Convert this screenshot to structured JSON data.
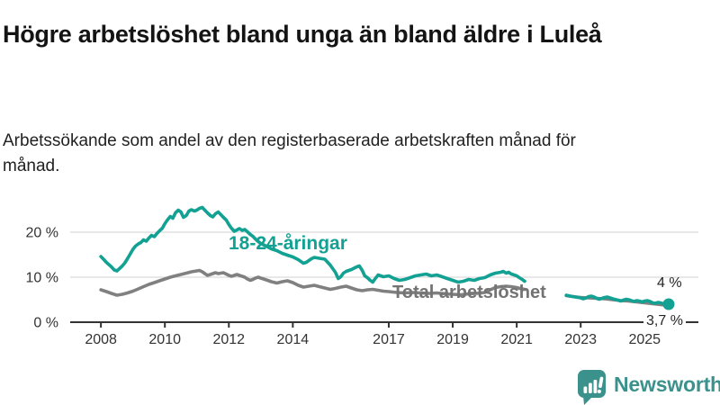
{
  "header": {
    "title": "Högre arbetslöshet bland unga än bland äldre i Luleå",
    "subtitle": "Arbetssökande som andel av den registerbaserade arbetskraften månad för månad."
  },
  "colors": {
    "accent_teal": "#12a192",
    "line_gray": "#808080",
    "label_gray": "#737373",
    "axis": "#333333",
    "gridline": "#d9d9d9",
    "logo_teal": "#3b918c",
    "end_label_text": "#262626"
  },
  "footer": {
    "brand": "Newsworthy",
    "logo_icon": "speech-bubble-bar-chart-exclamation"
  },
  "chart_data": {
    "type": "line",
    "title": "Högre arbetslöshet bland unga än bland äldre i Luleå",
    "subtitle": "Arbetssökande som andel av den registerbaserade arbetskraften månad för månad.",
    "xlabel": "",
    "ylabel": "",
    "xlim": [
      2007.04,
      2026.68
    ],
    "ylim": [
      0,
      32
    ],
    "grid": "horizontal",
    "legend_position": "inline-labels",
    "x_tick_years": [
      2008,
      2010,
      2012,
      2014,
      2017,
      2019,
      2021,
      2023,
      2025
    ],
    "x_tick_labels": [
      "2008",
      "2010",
      "2012",
      "2014",
      "2017",
      "2019",
      "2021",
      "2023",
      "2025"
    ],
    "y_tick_values": [
      0,
      10,
      20
    ],
    "y_tick_labels": [
      "0 %",
      "10 %",
      "20 %"
    ],
    "note": "data gap between 2021.25 and 2022.55 in both series",
    "series": [
      {
        "name": "18-24-åringar",
        "color": "#12a192",
        "end_label": "4 %",
        "end_value": 4.0,
        "end_dot": true,
        "points": [
          [
            2008.0,
            14.6
          ],
          [
            2008.08,
            14.0
          ],
          [
            2008.17,
            13.3
          ],
          [
            2008.25,
            12.8
          ],
          [
            2008.33,
            12.3
          ],
          [
            2008.42,
            11.6
          ],
          [
            2008.5,
            11.4
          ],
          [
            2008.58,
            11.9
          ],
          [
            2008.67,
            12.5
          ],
          [
            2008.75,
            13.2
          ],
          [
            2008.83,
            14.1
          ],
          [
            2008.92,
            15.2
          ],
          [
            2009.0,
            16.2
          ],
          [
            2009.08,
            16.9
          ],
          [
            2009.17,
            17.4
          ],
          [
            2009.25,
            17.7
          ],
          [
            2009.33,
            18.3
          ],
          [
            2009.42,
            18.0
          ],
          [
            2009.5,
            18.7
          ],
          [
            2009.58,
            19.3
          ],
          [
            2009.67,
            19.0
          ],
          [
            2009.75,
            19.7
          ],
          [
            2009.83,
            20.3
          ],
          [
            2009.92,
            20.9
          ],
          [
            2010.0,
            21.9
          ],
          [
            2010.08,
            22.7
          ],
          [
            2010.17,
            23.5
          ],
          [
            2010.25,
            23.1
          ],
          [
            2010.33,
            24.3
          ],
          [
            2010.42,
            24.9
          ],
          [
            2010.5,
            24.5
          ],
          [
            2010.58,
            23.3
          ],
          [
            2010.67,
            23.7
          ],
          [
            2010.75,
            24.7
          ],
          [
            2010.83,
            25.0
          ],
          [
            2010.92,
            24.7
          ],
          [
            2011.0,
            24.9
          ],
          [
            2011.08,
            25.3
          ],
          [
            2011.17,
            25.5
          ],
          [
            2011.25,
            24.9
          ],
          [
            2011.33,
            24.3
          ],
          [
            2011.42,
            23.7
          ],
          [
            2011.5,
            23.4
          ],
          [
            2011.58,
            24.1
          ],
          [
            2011.67,
            24.5
          ],
          [
            2011.75,
            23.9
          ],
          [
            2011.83,
            23.3
          ],
          [
            2011.92,
            22.7
          ],
          [
            2012.0,
            21.7
          ],
          [
            2012.08,
            20.9
          ],
          [
            2012.17,
            20.2
          ],
          [
            2012.25,
            20.5
          ],
          [
            2012.33,
            20.8
          ],
          [
            2012.42,
            20.4
          ],
          [
            2012.5,
            20.6
          ],
          [
            2012.58,
            20.1
          ],
          [
            2012.67,
            19.5
          ],
          [
            2012.75,
            19.1
          ],
          [
            2012.83,
            18.5
          ],
          [
            2012.92,
            17.9
          ],
          [
            2013.0,
            17.5
          ],
          [
            2013.17,
            16.9
          ],
          [
            2013.33,
            16.3
          ],
          [
            2013.5,
            15.9
          ],
          [
            2013.67,
            15.3
          ],
          [
            2013.83,
            14.9
          ],
          [
            2014.0,
            14.5
          ],
          [
            2014.17,
            13.9
          ],
          [
            2014.33,
            13.1
          ],
          [
            2014.42,
            13.3
          ],
          [
            2014.58,
            14.1
          ],
          [
            2014.67,
            14.4
          ],
          [
            2014.83,
            14.2
          ],
          [
            2015.0,
            14.0
          ],
          [
            2015.17,
            12.7
          ],
          [
            2015.33,
            11.1
          ],
          [
            2015.42,
            9.7
          ],
          [
            2015.5,
            10.1
          ],
          [
            2015.58,
            10.9
          ],
          [
            2015.67,
            11.3
          ],
          [
            2015.83,
            11.7
          ],
          [
            2016.0,
            12.3
          ],
          [
            2016.08,
            12.5
          ],
          [
            2016.17,
            11.5
          ],
          [
            2016.25,
            10.3
          ],
          [
            2016.33,
            9.9
          ],
          [
            2016.42,
            9.3
          ],
          [
            2016.5,
            8.9
          ],
          [
            2016.58,
            9.7
          ],
          [
            2016.67,
            10.5
          ],
          [
            2016.75,
            10.3
          ],
          [
            2016.83,
            10.1
          ],
          [
            2017.0,
            10.3
          ],
          [
            2017.17,
            9.7
          ],
          [
            2017.33,
            9.3
          ],
          [
            2017.5,
            9.5
          ],
          [
            2017.67,
            9.9
          ],
          [
            2017.83,
            10.3
          ],
          [
            2018.0,
            10.5
          ],
          [
            2018.17,
            10.7
          ],
          [
            2018.33,
            10.3
          ],
          [
            2018.5,
            10.5
          ],
          [
            2018.67,
            10.1
          ],
          [
            2018.83,
            9.7
          ],
          [
            2019.0,
            9.3
          ],
          [
            2019.17,
            8.9
          ],
          [
            2019.33,
            9.1
          ],
          [
            2019.5,
            9.5
          ],
          [
            2019.67,
            9.3
          ],
          [
            2019.83,
            9.7
          ],
          [
            2020.0,
            9.9
          ],
          [
            2020.17,
            10.5
          ],
          [
            2020.33,
            10.9
          ],
          [
            2020.5,
            11.1
          ],
          [
            2020.58,
            11.3
          ],
          [
            2020.67,
            10.9
          ],
          [
            2020.75,
            11.1
          ],
          [
            2020.83,
            10.7
          ],
          [
            2020.92,
            10.5
          ],
          [
            2021.0,
            10.3
          ],
          [
            2021.08,
            9.9
          ],
          [
            2021.17,
            9.5
          ],
          [
            2021.25,
            9.1
          ],
          [
            2022.55,
            6.0
          ],
          [
            2022.67,
            5.8
          ],
          [
            2022.83,
            5.6
          ],
          [
            2023.0,
            5.4
          ],
          [
            2023.08,
            5.2
          ],
          [
            2023.17,
            5.4
          ],
          [
            2023.25,
            5.7
          ],
          [
            2023.33,
            5.8
          ],
          [
            2023.42,
            5.6
          ],
          [
            2023.5,
            5.3
          ],
          [
            2023.58,
            5.1
          ],
          [
            2023.67,
            5.3
          ],
          [
            2023.75,
            5.5
          ],
          [
            2023.83,
            5.6
          ],
          [
            2023.92,
            5.4
          ],
          [
            2024.0,
            5.2
          ],
          [
            2024.17,
            4.9
          ],
          [
            2024.25,
            4.7
          ],
          [
            2024.33,
            4.9
          ],
          [
            2024.42,
            5.1
          ],
          [
            2024.5,
            5.0
          ],
          [
            2024.58,
            4.8
          ],
          [
            2024.67,
            4.6
          ],
          [
            2024.75,
            4.8
          ],
          [
            2024.83,
            4.7
          ],
          [
            2024.92,
            4.5
          ],
          [
            2025.0,
            4.7
          ],
          [
            2025.08,
            4.8
          ],
          [
            2025.17,
            4.6
          ],
          [
            2025.25,
            4.3
          ],
          [
            2025.33,
            4.2
          ],
          [
            2025.42,
            4.4
          ],
          [
            2025.5,
            4.3
          ],
          [
            2025.58,
            4.1
          ],
          [
            2025.67,
            4.0
          ],
          [
            2025.75,
            4.0
          ]
        ]
      },
      {
        "name": "Total arbetslöshet",
        "color": "#808080",
        "end_label": "3,7 %",
        "end_value": 3.7,
        "end_dot": false,
        "points": [
          [
            2008.0,
            7.2
          ],
          [
            2008.17,
            6.8
          ],
          [
            2008.33,
            6.4
          ],
          [
            2008.5,
            6.0
          ],
          [
            2008.67,
            6.2
          ],
          [
            2008.83,
            6.5
          ],
          [
            2009.0,
            6.9
          ],
          [
            2009.17,
            7.4
          ],
          [
            2009.33,
            7.9
          ],
          [
            2009.5,
            8.4
          ],
          [
            2009.67,
            8.8
          ],
          [
            2009.83,
            9.2
          ],
          [
            2010.0,
            9.6
          ],
          [
            2010.17,
            10.0
          ],
          [
            2010.33,
            10.3
          ],
          [
            2010.5,
            10.6
          ],
          [
            2010.67,
            10.9
          ],
          [
            2010.83,
            11.2
          ],
          [
            2011.0,
            11.4
          ],
          [
            2011.08,
            11.5
          ],
          [
            2011.17,
            11.2
          ],
          [
            2011.25,
            10.8
          ],
          [
            2011.33,
            10.4
          ],
          [
            2011.42,
            10.6
          ],
          [
            2011.5,
            10.8
          ],
          [
            2011.58,
            11.0
          ],
          [
            2011.67,
            10.8
          ],
          [
            2011.75,
            10.9
          ],
          [
            2011.83,
            11.0
          ],
          [
            2011.92,
            10.7
          ],
          [
            2012.0,
            10.4
          ],
          [
            2012.08,
            10.2
          ],
          [
            2012.17,
            10.4
          ],
          [
            2012.25,
            10.6
          ],
          [
            2012.33,
            10.4
          ],
          [
            2012.42,
            10.2
          ],
          [
            2012.5,
            10.0
          ],
          [
            2012.58,
            9.6
          ],
          [
            2012.67,
            9.3
          ],
          [
            2012.75,
            9.5
          ],
          [
            2012.83,
            9.8
          ],
          [
            2012.92,
            10.0
          ],
          [
            2013.0,
            9.8
          ],
          [
            2013.17,
            9.4
          ],
          [
            2013.33,
            9.0
          ],
          [
            2013.5,
            8.7
          ],
          [
            2013.67,
            9.0
          ],
          [
            2013.83,
            9.2
          ],
          [
            2014.0,
            8.8
          ],
          [
            2014.17,
            8.2
          ],
          [
            2014.33,
            7.8
          ],
          [
            2014.5,
            8.0
          ],
          [
            2014.67,
            8.2
          ],
          [
            2014.83,
            7.9
          ],
          [
            2015.0,
            7.6
          ],
          [
            2015.17,
            7.3
          ],
          [
            2015.33,
            7.5
          ],
          [
            2015.5,
            7.8
          ],
          [
            2015.67,
            8.0
          ],
          [
            2015.83,
            7.6
          ],
          [
            2016.0,
            7.2
          ],
          [
            2016.17,
            7.0
          ],
          [
            2016.33,
            7.2
          ],
          [
            2016.5,
            7.3
          ],
          [
            2016.67,
            7.1
          ],
          [
            2016.83,
            6.9
          ],
          [
            2017.0,
            6.8
          ],
          [
            2017.25,
            6.6
          ],
          [
            2017.5,
            6.5
          ],
          [
            2017.75,
            6.6
          ],
          [
            2018.0,
            6.5
          ],
          [
            2018.25,
            6.4
          ],
          [
            2018.5,
            6.5
          ],
          [
            2018.75,
            6.3
          ],
          [
            2019.0,
            6.2
          ],
          [
            2019.25,
            6.1
          ],
          [
            2019.5,
            6.3
          ],
          [
            2019.75,
            6.4
          ],
          [
            2020.0,
            6.6
          ],
          [
            2020.17,
            7.2
          ],
          [
            2020.33,
            7.7
          ],
          [
            2020.5,
            7.9
          ],
          [
            2020.67,
            8.0
          ],
          [
            2020.83,
            7.9
          ],
          [
            2021.0,
            7.7
          ],
          [
            2021.1,
            7.5
          ],
          [
            2021.25,
            7.3
          ],
          [
            2022.55,
            5.9
          ],
          [
            2022.75,
            5.7
          ],
          [
            2023.0,
            5.5
          ],
          [
            2023.25,
            5.4
          ],
          [
            2023.5,
            5.3
          ],
          [
            2023.75,
            5.2
          ],
          [
            2024.0,
            5.0
          ],
          [
            2024.25,
            4.8
          ],
          [
            2024.5,
            4.7
          ],
          [
            2024.75,
            4.5
          ],
          [
            2025.0,
            4.3
          ],
          [
            2025.25,
            4.1
          ],
          [
            2025.5,
            3.9
          ],
          [
            2025.75,
            3.7
          ]
        ]
      }
    ]
  }
}
